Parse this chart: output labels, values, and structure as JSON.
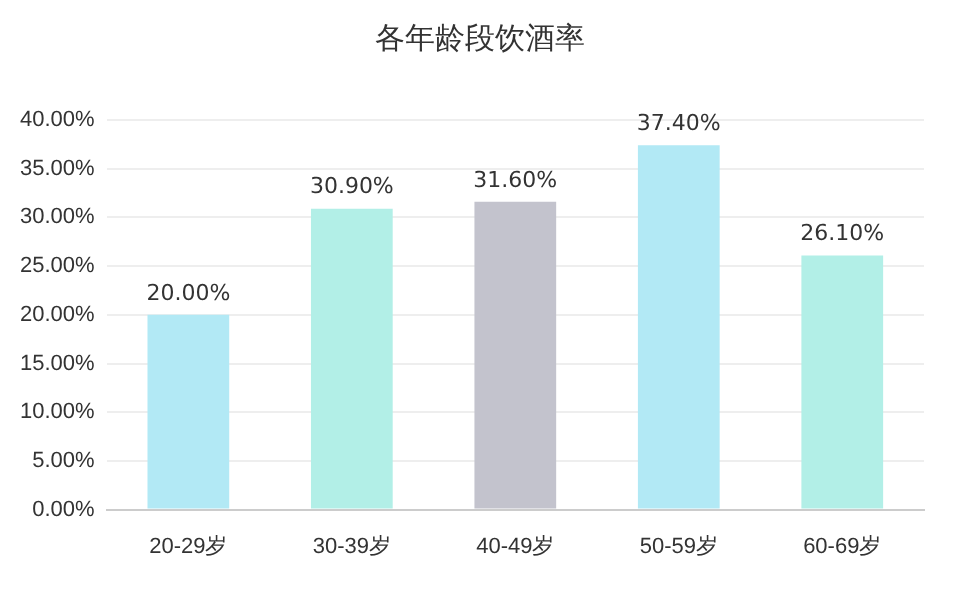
{
  "chart_data": {
    "type": "bar",
    "title": "各年龄段饮酒率",
    "categories": [
      "20-29岁",
      "30-39岁",
      "40-49岁",
      "50-59岁",
      "60-69岁"
    ],
    "values": [
      20.0,
      30.9,
      31.6,
      37.4,
      26.1
    ],
    "colors": [
      "#b2e9f5",
      "#b2efe7",
      "#c3c3cd",
      "#b2e9f5",
      "#b2efe7"
    ],
    "value_labels": [
      "20.00%",
      "30.90%",
      "31.60%",
      "37.40%",
      "26.10%"
    ],
    "ylim": [
      0,
      40
    ],
    "yticks": [
      {
        "value": 0,
        "label": "0.00%"
      },
      {
        "value": 5,
        "label": "5.00%"
      },
      {
        "value": 10,
        "label": "10.00%"
      },
      {
        "value": 15,
        "label": "15.00%"
      },
      {
        "value": 20,
        "label": "20.00%"
      },
      {
        "value": 25,
        "label": "25.00%"
      },
      {
        "value": 30,
        "label": "30.00%"
      },
      {
        "value": 35,
        "label": "35.00%"
      },
      {
        "value": 40,
        "label": "40.00%"
      }
    ],
    "grid": "y",
    "legend": false
  }
}
